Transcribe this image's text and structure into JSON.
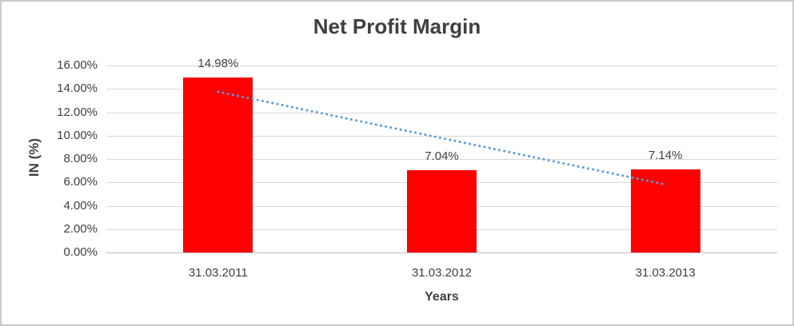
{
  "chart_data": {
    "type": "bar",
    "title": "Net Profit Margin",
    "xlabel": "Years",
    "ylabel": "IN (%)",
    "categories": [
      "31.03.2011",
      "31.03.2012",
      "31.03.2013"
    ],
    "values": [
      14.98,
      7.04,
      7.14
    ],
    "data_labels": [
      "14.98%",
      "7.04%",
      "7.14%"
    ],
    "ylim": [
      0,
      16
    ],
    "y_tick_step": 2,
    "y_tick_labels": [
      "0.00%",
      "2.00%",
      "4.00%",
      "6.00%",
      "8.00%",
      "10.00%",
      "12.00%",
      "14.00%",
      "16.00%"
    ],
    "grid": true,
    "legend": "none",
    "bar_color": "#FF0000",
    "gridline_color": "#D9D9D9",
    "axis_line_color": "#BFBFBF",
    "text_color": "#3F3F3F",
    "trendline": {
      "type": "linear",
      "style": "dotted",
      "color": "#5B9BD5",
      "start_category_index": 0,
      "end_category_index": 2,
      "start_value": 13.75,
      "end_value": 5.82
    }
  }
}
